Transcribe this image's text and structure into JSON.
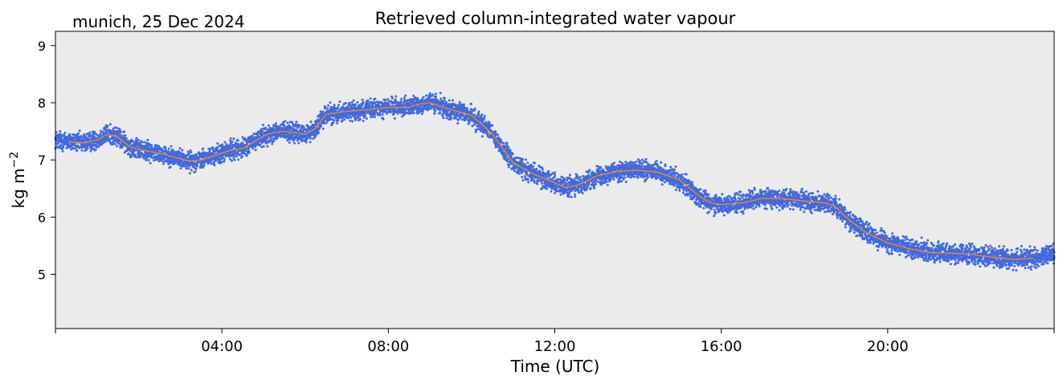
{
  "header": {
    "location_date": "munich, 25 Dec 2024"
  },
  "chart_data": {
    "type": "scatter",
    "title": "Retrieved column-integrated water vapour",
    "xlabel": "Time (UTC)",
    "ylabel": "kg m",
    "ylabel_superscript": "−2",
    "xlim_hours": [
      0,
      24
    ],
    "ylim": [
      4.05,
      9.25
    ],
    "x_ticks": [
      {
        "hour": 0,
        "label": ""
      },
      {
        "hour": 4,
        "label": "04:00"
      },
      {
        "hour": 8,
        "label": "08:00"
      },
      {
        "hour": 12,
        "label": "12:00"
      },
      {
        "hour": 16,
        "label": "16:00"
      },
      {
        "hour": 20,
        "label": "20:00"
      },
      {
        "hour": 24,
        "label": ""
      }
    ],
    "y_ticks": [
      5,
      6,
      7,
      8,
      9
    ],
    "grid": false,
    "background_color": "#ebebeb",
    "colors": {
      "scatter": "#4169e1",
      "smoothed_line": "#ff8c00"
    },
    "series": [
      {
        "kind": "scatter",
        "x_hours": [
          0.0,
          0.33,
          0.67,
          1.0,
          1.25,
          1.5,
          1.75,
          2.0,
          2.5,
          3.0,
          3.25,
          3.5,
          4.0,
          4.25,
          4.5,
          5.0,
          5.25,
          5.5,
          6.0,
          6.25,
          6.5,
          7.0,
          7.5,
          8.0,
          8.5,
          8.75,
          9.0,
          9.5,
          10.0,
          10.25,
          10.5,
          10.75,
          11.0,
          11.25,
          11.5,
          12.0,
          12.25,
          12.5,
          12.75,
          13.0,
          13.5,
          14.0,
          14.5,
          15.0,
          15.25,
          15.5,
          15.75,
          16.0,
          16.5,
          17.0,
          17.5,
          18.0,
          18.5,
          18.75,
          19.0,
          19.25,
          19.5,
          20.0,
          20.5,
          21.0,
          21.5,
          22.0,
          22.5,
          23.0,
          23.5,
          24.0
        ],
        "y": [
          7.35,
          7.32,
          7.3,
          7.35,
          7.45,
          7.4,
          7.25,
          7.18,
          7.12,
          7.02,
          6.98,
          7.0,
          7.12,
          7.18,
          7.2,
          7.42,
          7.48,
          7.5,
          7.45,
          7.55,
          7.8,
          7.85,
          7.88,
          7.92,
          7.92,
          7.98,
          8.0,
          7.88,
          7.78,
          7.62,
          7.45,
          7.2,
          6.95,
          6.85,
          6.75,
          6.6,
          6.52,
          6.55,
          6.62,
          6.72,
          6.8,
          6.82,
          6.78,
          6.65,
          6.5,
          6.35,
          6.25,
          6.22,
          6.25,
          6.33,
          6.32,
          6.28,
          6.25,
          6.18,
          6.0,
          5.85,
          5.72,
          5.55,
          5.45,
          5.38,
          5.37,
          5.35,
          5.3,
          5.26,
          5.28,
          5.35
        ]
      },
      {
        "kind": "line",
        "x_hours": [
          0.33,
          0.67,
          1.0,
          1.25,
          1.5,
          1.75,
          2.0,
          2.5,
          3.0,
          3.25,
          3.5,
          4.0,
          4.25,
          4.5,
          5.0,
          5.25,
          5.5,
          6.0,
          6.25,
          6.5,
          7.0,
          7.5,
          8.0,
          8.5,
          8.75,
          9.0,
          9.5,
          10.0,
          10.25,
          10.5,
          10.75,
          11.0,
          11.25,
          11.5,
          12.0,
          12.25,
          12.5,
          12.75,
          13.0,
          13.5,
          14.0,
          14.5,
          15.0,
          15.25,
          15.5,
          15.75,
          16.0,
          16.5,
          17.0,
          17.5,
          18.0,
          18.5,
          18.75,
          19.0,
          19.25,
          19.5,
          20.0,
          20.5,
          21.0,
          21.5,
          22.0,
          22.5,
          23.0,
          23.5
        ],
        "y": [
          7.32,
          7.3,
          7.35,
          7.45,
          7.4,
          7.25,
          7.18,
          7.12,
          7.02,
          6.98,
          7.0,
          7.12,
          7.18,
          7.2,
          7.42,
          7.48,
          7.5,
          7.45,
          7.55,
          7.8,
          7.85,
          7.88,
          7.92,
          7.92,
          7.98,
          8.0,
          7.88,
          7.78,
          7.62,
          7.45,
          7.2,
          6.95,
          6.85,
          6.75,
          6.6,
          6.52,
          6.55,
          6.62,
          6.72,
          6.8,
          6.82,
          6.78,
          6.65,
          6.5,
          6.35,
          6.25,
          6.22,
          6.25,
          6.33,
          6.32,
          6.28,
          6.25,
          6.18,
          6.0,
          5.85,
          5.72,
          5.55,
          5.45,
          5.38,
          5.37,
          5.35,
          5.3,
          5.26,
          5.28
        ]
      }
    ]
  }
}
